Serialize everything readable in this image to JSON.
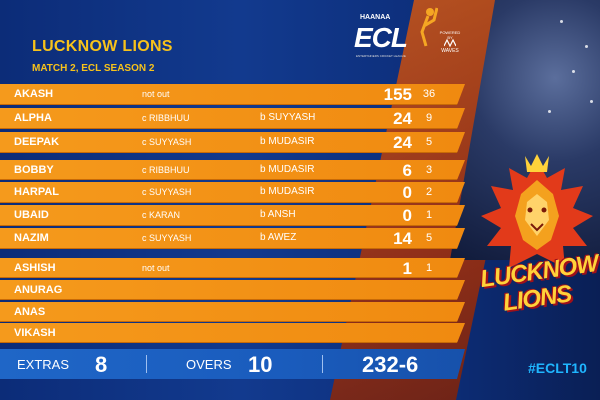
{
  "header": {
    "team": "LUCKNOW LIONS",
    "match": "MATCH 2, ECL SEASON 2"
  },
  "logo": {
    "sponsor": "HAANAA",
    "league": "ECL",
    "tagline": "ENTERTAINERS CRICKET LEAGUE",
    "powered_by": "POWERED BY",
    "partner": "WAVES"
  },
  "batting": [
    {
      "name": "AKASH",
      "dismissal": "not out",
      "bowler": "",
      "runs": "155",
      "balls": "36"
    },
    {
      "name": "ALPHA",
      "dismissal": "c RIBBHUU",
      "bowler": "b SUYYASH",
      "runs": "24",
      "balls": "9"
    },
    {
      "name": "DEEPAK",
      "dismissal": "c SUYYASH",
      "bowler": "b MUDASIR",
      "runs": "24",
      "balls": "5"
    },
    {
      "name": "BOBBY",
      "dismissal": "c RIBBHUU",
      "bowler": "b MUDASIR",
      "runs": "6",
      "balls": "3"
    },
    {
      "name": "HARPAL",
      "dismissal": "c SUYYASH",
      "bowler": "b MUDASIR",
      "runs": "0",
      "balls": "2"
    },
    {
      "name": "UBAID",
      "dismissal": "c KARAN",
      "bowler": "b ANSH",
      "runs": "0",
      "balls": "1"
    },
    {
      "name": "NAZIM",
      "dismissal": "c SUYYASH",
      "bowler": "b AWEZ",
      "runs": "14",
      "balls": "5"
    },
    {
      "name": "ASHISH",
      "dismissal": "not out",
      "bowler": "",
      "runs": "1",
      "balls": "1"
    },
    {
      "name": "ANURAG",
      "dismissal": "",
      "bowler": "",
      "runs": "",
      "balls": ""
    },
    {
      "name": "ANAS",
      "dismissal": "",
      "bowler": "",
      "runs": "",
      "balls": ""
    },
    {
      "name": "VIKASH",
      "dismissal": "",
      "bowler": "",
      "runs": "",
      "balls": ""
    }
  ],
  "summary": {
    "extras_label": "EXTRAS",
    "extras": "8",
    "overs_label": "OVERS",
    "overs": "10",
    "total": "232-6"
  },
  "team_logo": {
    "line1": "LUCKNOW",
    "line2": "LIONS"
  },
  "hashtag": "#ECLT10",
  "colors": {
    "row": "#f59a1c",
    "title": "#f7c21b",
    "bottom_bar": "#1f66c7",
    "hashtag": "#1fb6ff"
  }
}
